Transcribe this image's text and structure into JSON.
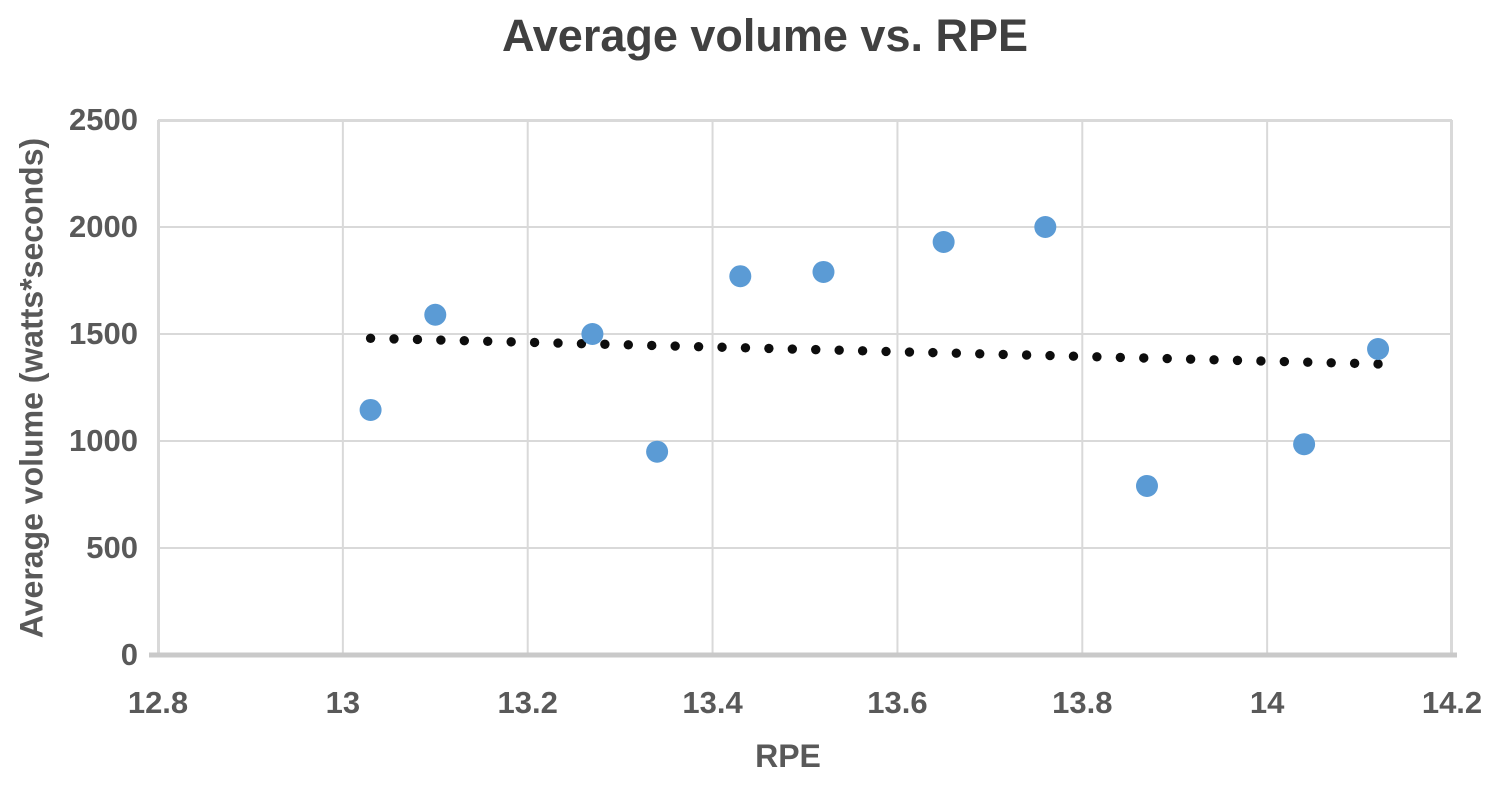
{
  "chart_data": {
    "type": "scatter",
    "title": "Average volume vs. RPE",
    "xlabel": "RPE",
    "ylabel": "Average volume (watts*seconds)",
    "xlim": [
      12.8,
      14.2
    ],
    "ylim": [
      0,
      2500
    ],
    "x_ticks": [
      12.8,
      13,
      13.2,
      13.4,
      13.6,
      13.8,
      14,
      14.2
    ],
    "x_tick_labels": [
      "12.8",
      "13",
      "13.2",
      "13.4",
      "13.6",
      "13.8",
      "14",
      "14.2"
    ],
    "y_ticks": [
      0,
      500,
      1000,
      1500,
      2000,
      2500
    ],
    "y_tick_labels": [
      "0",
      "500",
      "1000",
      "1500",
      "2000",
      "2500"
    ],
    "grid": true,
    "legend": false,
    "points": [
      {
        "x": 13.03,
        "y": 1145
      },
      {
        "x": 13.1,
        "y": 1590
      },
      {
        "x": 13.27,
        "y": 1500
      },
      {
        "x": 13.34,
        "y": 950
      },
      {
        "x": 13.43,
        "y": 1770
      },
      {
        "x": 13.52,
        "y": 1790
      },
      {
        "x": 13.65,
        "y": 1930
      },
      {
        "x": 13.76,
        "y": 2000
      },
      {
        "x": 13.87,
        "y": 790
      },
      {
        "x": 14.04,
        "y": 985
      },
      {
        "x": 14.12,
        "y": 1430
      }
    ],
    "trendline": {
      "style": "dotted",
      "x_start": 13.03,
      "y_start": 1480,
      "x_end": 14.12,
      "y_end": 1360
    },
    "colors": {
      "point": "#5B9BD5",
      "trendline": "#0d0d0d",
      "gridline": "#D9D9D9",
      "axis_line": "#C9C9C9",
      "tick_text": "#595959",
      "title_text": "#404040"
    }
  }
}
